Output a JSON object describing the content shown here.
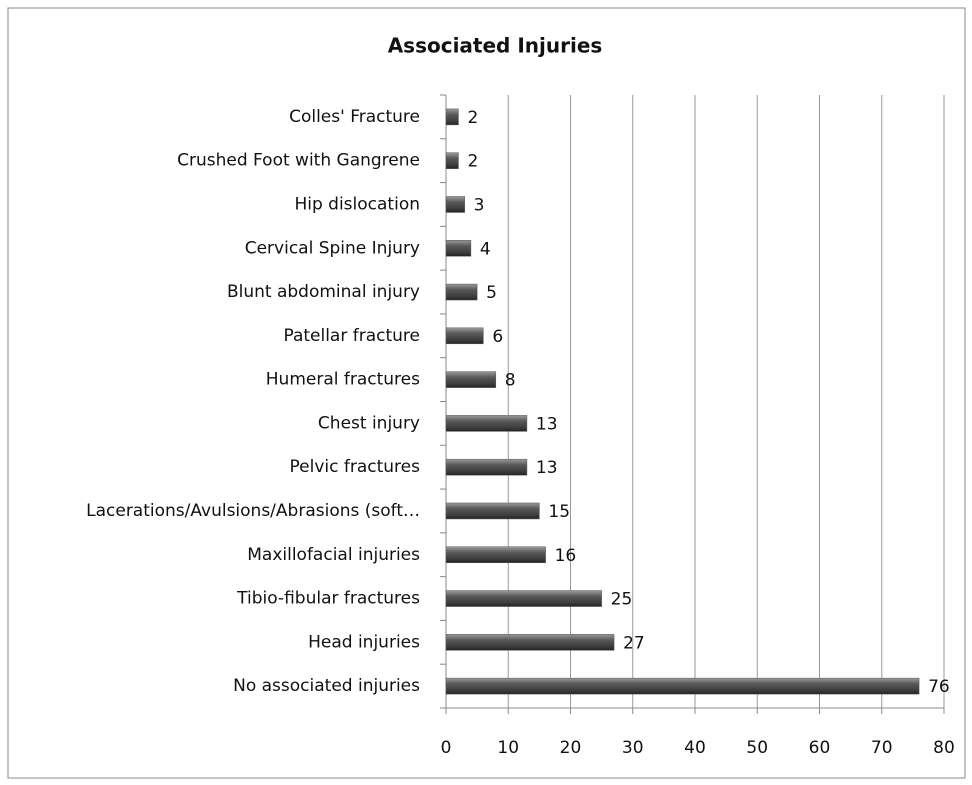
{
  "chart_data": {
    "type": "bar",
    "orientation": "horizontal",
    "title": "Associated Injuries",
    "categories": [
      "Colles' Fracture",
      "Crushed Foot with Gangrene",
      "Hip dislocation",
      "Cervical Spine Injury",
      "Blunt abdominal injury",
      "Patellar fracture",
      "Humeral fractures",
      "Chest injury",
      "Pelvic fractures",
      "Lacerations/Avulsions/Abrasions (soft…",
      "Maxillofacial injuries",
      "Tibio-fibular fractures",
      "Head injuries",
      "No associated injuries"
    ],
    "values": [
      2,
      2,
      3,
      4,
      5,
      6,
      8,
      13,
      13,
      15,
      16,
      25,
      27,
      76
    ],
    "color": "#5a5a5a",
    "xlim": [
      0,
      80
    ],
    "xticks": [
      0,
      10,
      20,
      30,
      40,
      50,
      60,
      70,
      80
    ],
    "grid": true
  }
}
